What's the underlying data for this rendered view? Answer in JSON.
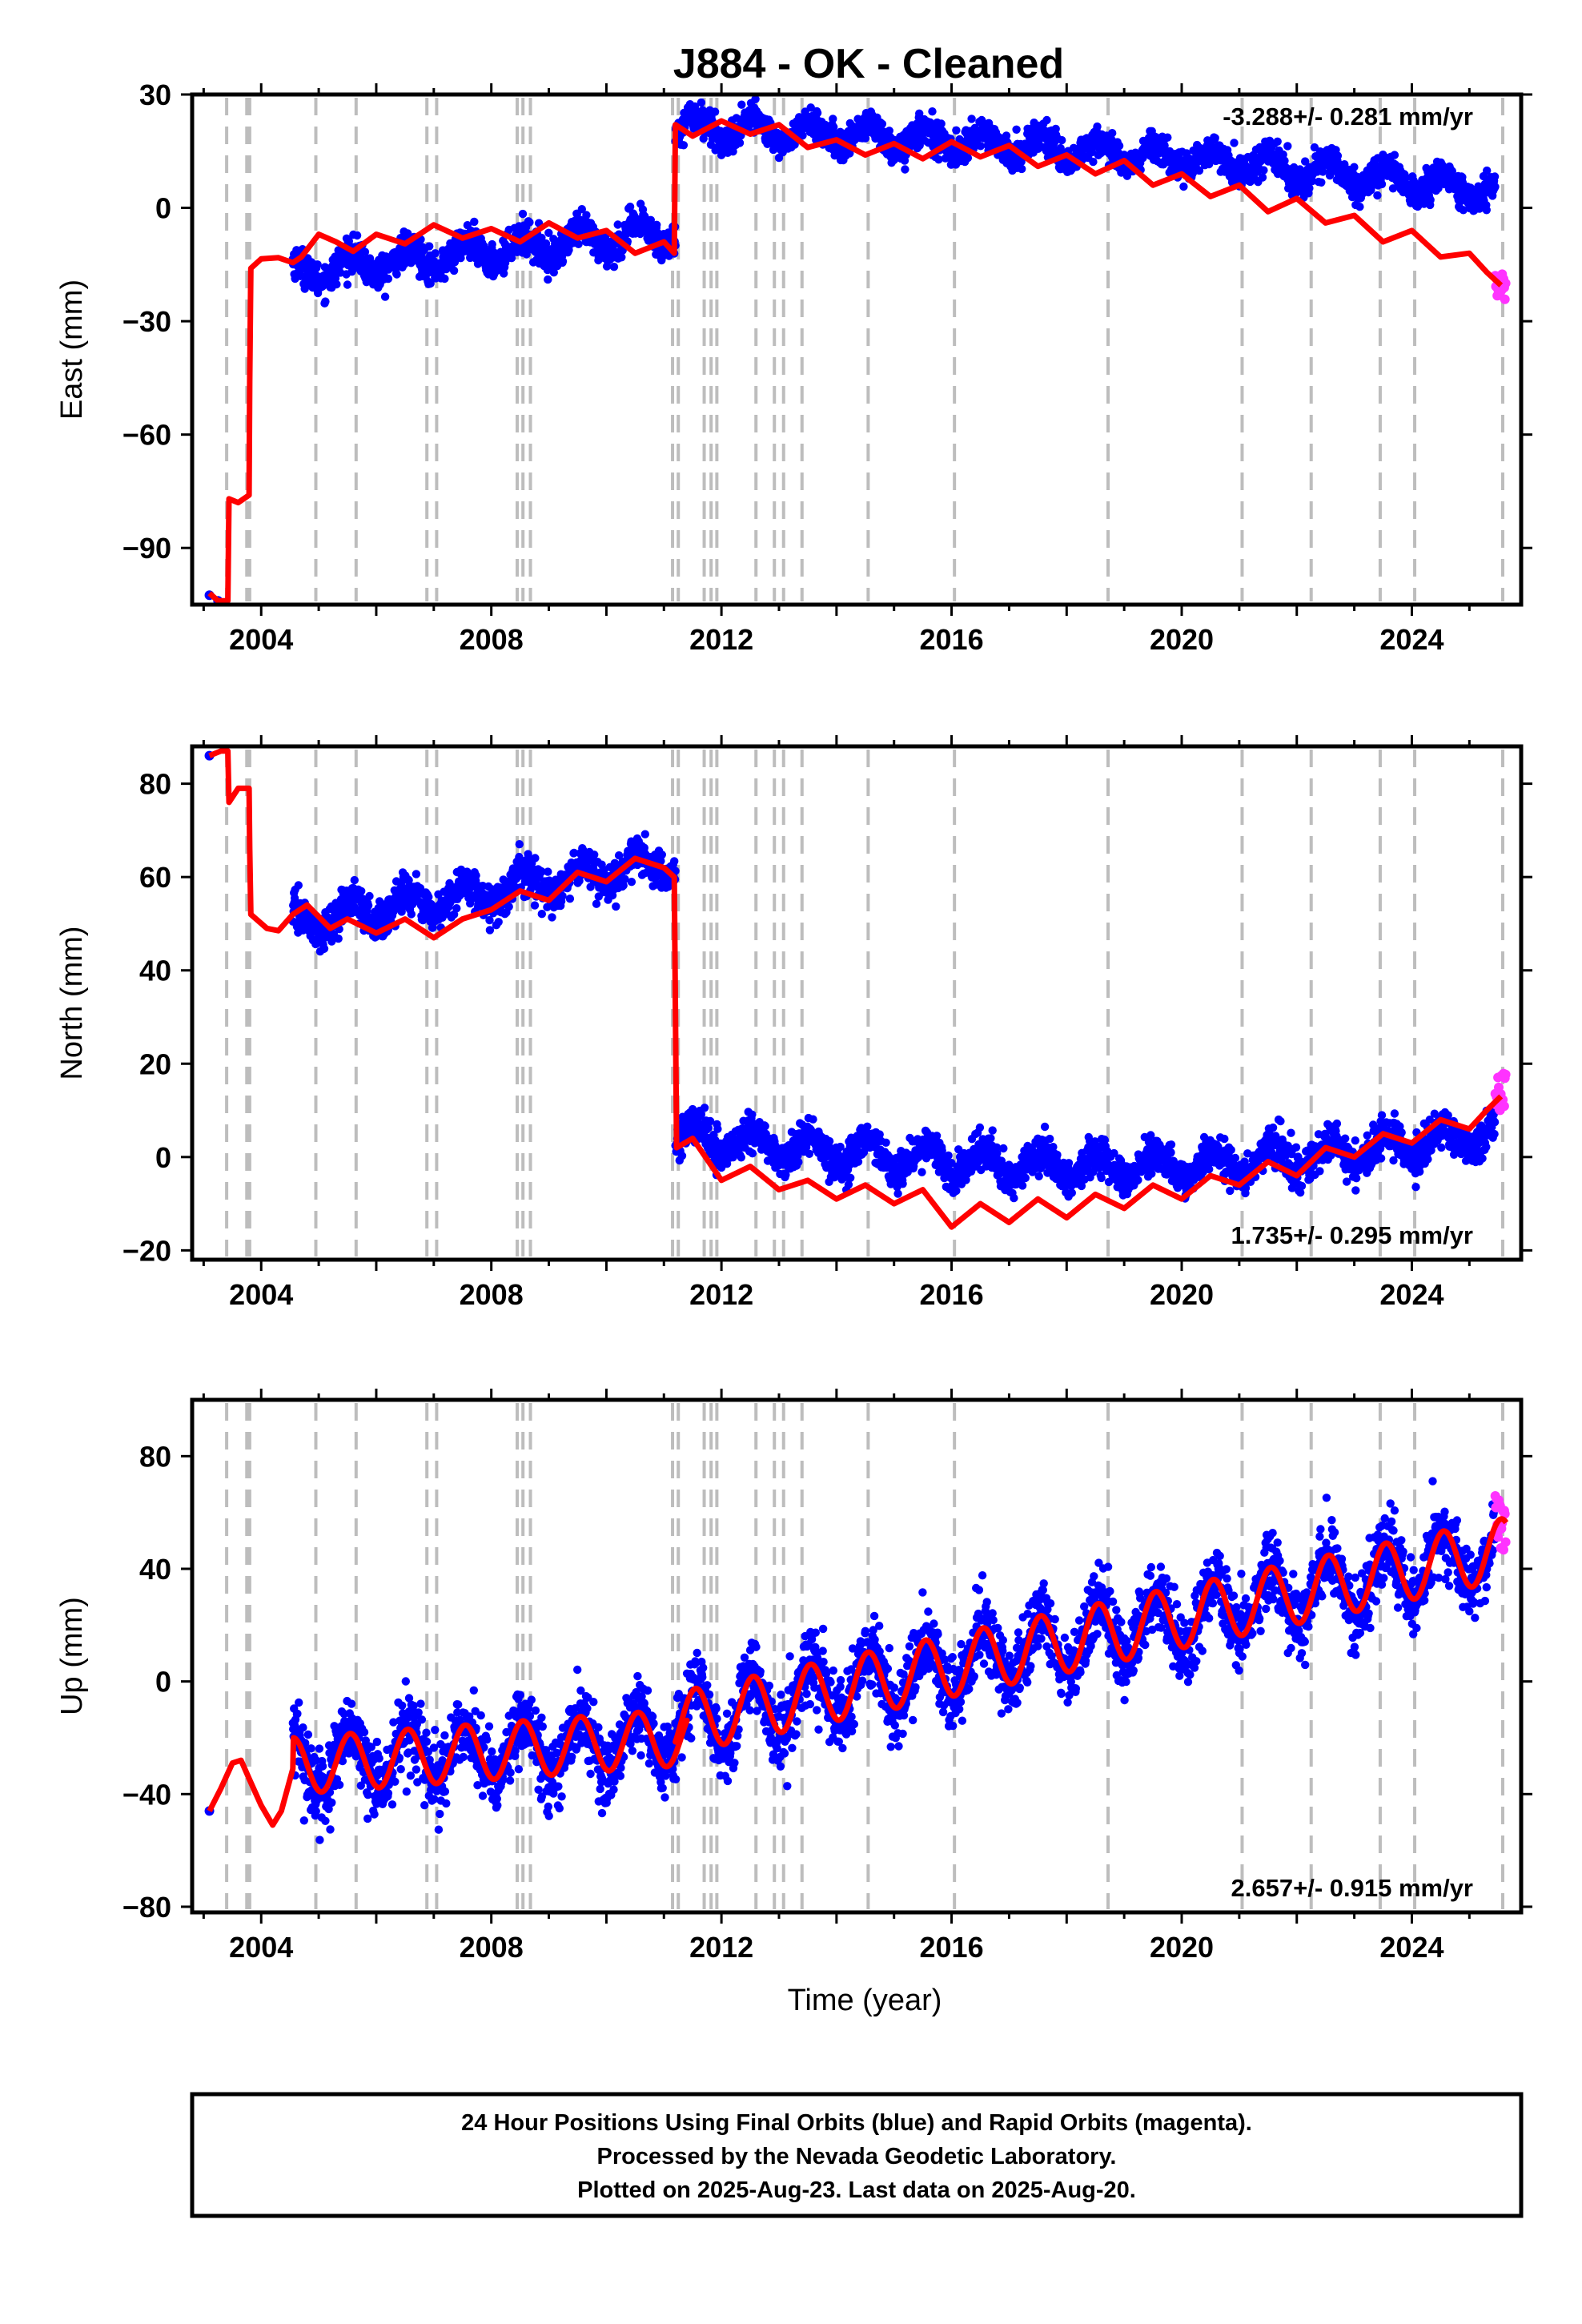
{
  "title": "J884  - OK - Cleaned",
  "colors": {
    "final_orbits": "#0000ff",
    "rapid_orbits": "#ff33ff",
    "model": "#ff0000",
    "event_lines": "#bdbdbd",
    "frame": "#000000"
  },
  "chart_data": [
    {
      "type": "scatter",
      "component": "east",
      "ylabel": "East (mm)",
      "xlabel": "",
      "xlim": [
        2002.8,
        2025.9
      ],
      "ylim": [
        -105,
        30
      ],
      "yticks": [
        -90,
        -60,
        -30,
        0,
        30
      ],
      "xticks": [
        2004,
        2008,
        2012,
        2016,
        2020,
        2024
      ],
      "rate_text": "-3.288+/- 0.281 mm/yr",
      "rate_position": "top-right",
      "grid": false,
      "series": [
        {
          "name": "Final Orbits",
          "color": "#0000ff",
          "segments": [
            {
              "x0": 2004.55,
              "x1": 2011.2,
              "y0": -17.0,
              "rate": 1.6,
              "amp": 3.0,
              "noise": 2.2
            },
            {
              "x0": 2011.2,
              "x1": 2025.45,
              "y0": 22.0,
              "rate": -0.9,
              "amp": 3.0,
              "noise": 2.0,
              "curve": -0.055,
              "curve_t0": 2016.0
            }
          ],
          "early_points": [
            [
              2003.1,
              -102.5
            ],
            [
              2003.25,
              -104.0
            ]
          ]
        },
        {
          "name": "Rapid Orbits",
          "color": "#ff33ff",
          "x0": 2025.45,
          "x1": 2025.63,
          "y0": -21.0,
          "spread": 3.5
        },
        {
          "name": "Model",
          "color": "#ff0000",
          "points": [
            [
              2003.1,
              -102
            ],
            [
              2003.25,
              -104
            ],
            [
              2003.42,
              -104
            ],
            [
              2003.44,
              -77
            ],
            [
              2003.6,
              -78
            ],
            [
              2003.79,
              -76
            ],
            [
              2003.8,
              -46
            ],
            [
              2003.82,
              -16
            ],
            [
              2004.0,
              -13.5
            ],
            [
              2004.3,
              -13.2
            ],
            [
              2004.55,
              -14.5
            ],
            [
              2004.7,
              -13.0
            ],
            [
              2005.0,
              -7.0
            ],
            [
              2005.3,
              -9.0
            ],
            [
              2005.6,
              -11.5
            ],
            [
              2006.0,
              -7.0
            ],
            [
              2006.5,
              -9.5
            ],
            [
              2007.0,
              -4.5
            ],
            [
              2007.5,
              -8.0
            ],
            [
              2008.0,
              -5.5
            ],
            [
              2008.5,
              -9.0
            ],
            [
              2009.0,
              -4.0
            ],
            [
              2009.5,
              -8.0
            ],
            [
              2010.0,
              -6.0
            ],
            [
              2010.5,
              -12.0
            ],
            [
              2011.0,
              -9.0
            ],
            [
              2011.18,
              -12.0
            ],
            [
              2011.2,
              22.0
            ],
            [
              2011.5,
              19.0
            ],
            [
              2012.0,
              23.0
            ],
            [
              2012.5,
              19.5
            ],
            [
              2013.0,
              22.0
            ],
            [
              2013.5,
              16.0
            ],
            [
              2014.0,
              18.0
            ],
            [
              2014.5,
              14.0
            ],
            [
              2015.0,
              17.0
            ],
            [
              2015.5,
              13.0
            ],
            [
              2016.0,
              17.5
            ],
            [
              2016.5,
              13.5
            ],
            [
              2017.0,
              16.5
            ],
            [
              2017.5,
              11.0
            ],
            [
              2018.0,
              14.0
            ],
            [
              2018.5,
              9.0
            ],
            [
              2019.0,
              12.5
            ],
            [
              2019.5,
              6.0
            ],
            [
              2020.0,
              9.0
            ],
            [
              2020.5,
              3.0
            ],
            [
              2021.0,
              6.0
            ],
            [
              2021.5,
              -1.0
            ],
            [
              2022.0,
              2.5
            ],
            [
              2022.5,
              -4.0
            ],
            [
              2023.0,
              -2.0
            ],
            [
              2023.5,
              -9.0
            ],
            [
              2024.0,
              -6.0
            ],
            [
              2024.5,
              -13.0
            ],
            [
              2025.0,
              -12.0
            ],
            [
              2025.3,
              -17.0
            ],
            [
              2025.55,
              -20.5
            ]
          ]
        }
      ]
    },
    {
      "type": "scatter",
      "component": "north",
      "ylabel": "North (mm)",
      "xlabel": "",
      "xlim": [
        2002.8,
        2025.9
      ],
      "ylim": [
        -22,
        88
      ],
      "yticks": [
        -20,
        0,
        20,
        40,
        60,
        80
      ],
      "xticks": [
        2004,
        2008,
        2012,
        2016,
        2020,
        2024
      ],
      "rate_text": "1.735+/- 0.295 mm/yr",
      "rate_position": "bottom-right",
      "grid": false,
      "series": [
        {
          "name": "Final Orbits",
          "color": "#0000ff",
          "segments": [
            {
              "x0": 2004.55,
              "x1": 2011.2,
              "y0": 50.0,
              "rate": 2.0,
              "amp": 2.8,
              "noise": 2.0
            },
            {
              "x0": 2011.2,
              "x1": 2025.45,
              "y0": 3.0,
              "rate": -0.8,
              "amp": 3.0,
              "noise": 2.0,
              "curve": 0.18,
              "curve_t0": 2016.5
            }
          ],
          "early_points": [
            [
              2003.1,
              86.0
            ]
          ]
        },
        {
          "name": "Rapid Orbits",
          "color": "#ff33ff",
          "x0": 2025.45,
          "x1": 2025.63,
          "y0": 14.0,
          "spread": 4.0
        },
        {
          "name": "Model",
          "color": "#ff0000",
          "points": [
            [
              2003.1,
              86
            ],
            [
              2003.3,
              87
            ],
            [
              2003.42,
              87
            ],
            [
              2003.44,
              76
            ],
            [
              2003.6,
              79
            ],
            [
              2003.79,
              79
            ],
            [
              2003.8,
              66
            ],
            [
              2003.82,
              52
            ],
            [
              2004.1,
              49
            ],
            [
              2004.3,
              48.5
            ],
            [
              2004.55,
              52
            ],
            [
              2004.8,
              54
            ],
            [
              2005.2,
              49
            ],
            [
              2005.5,
              51
            ],
            [
              2006.0,
              48
            ],
            [
              2006.5,
              51
            ],
            [
              2007.0,
              47
            ],
            [
              2007.5,
              51
            ],
            [
              2008.0,
              53
            ],
            [
              2008.5,
              57
            ],
            [
              2009.0,
              55
            ],
            [
              2009.5,
              61
            ],
            [
              2010.0,
              59
            ],
            [
              2010.5,
              64
            ],
            [
              2011.0,
              62
            ],
            [
              2011.18,
              60
            ],
            [
              2011.22,
              2
            ],
            [
              2011.5,
              4
            ],
            [
              2012.0,
              -5
            ],
            [
              2012.5,
              -2
            ],
            [
              2013.0,
              -7
            ],
            [
              2013.5,
              -5
            ],
            [
              2014.0,
              -9
            ],
            [
              2014.5,
              -6
            ],
            [
              2015.0,
              -10
            ],
            [
              2015.5,
              -7
            ],
            [
              2016.0,
              -15
            ],
            [
              2016.5,
              -10
            ],
            [
              2017.0,
              -14
            ],
            [
              2017.5,
              -9
            ],
            [
              2018.0,
              -13
            ],
            [
              2018.5,
              -8
            ],
            [
              2019.0,
              -11
            ],
            [
              2019.5,
              -6
            ],
            [
              2020.0,
              -9
            ],
            [
              2020.5,
              -4
            ],
            [
              2021.0,
              -6
            ],
            [
              2021.5,
              -1
            ],
            [
              2022.0,
              -4
            ],
            [
              2022.5,
              2
            ],
            [
              2023.0,
              0
            ],
            [
              2023.5,
              5
            ],
            [
              2024.0,
              3
            ],
            [
              2024.5,
              8
            ],
            [
              2025.0,
              6
            ],
            [
              2025.3,
              10
            ],
            [
              2025.55,
              13
            ]
          ]
        }
      ]
    },
    {
      "type": "scatter",
      "component": "up",
      "ylabel": "Up (mm)",
      "xlabel": "Time (year)",
      "xlim": [
        2002.8,
        2025.9
      ],
      "ylim": [
        -82,
        100
      ],
      "yticks": [
        -80,
        -40,
        0,
        40,
        80
      ],
      "xticks": [
        2004,
        2008,
        2012,
        2016,
        2020,
        2024
      ],
      "rate_text": "2.657+/- 0.915 mm/yr",
      "rate_position": "bottom-right",
      "grid": false,
      "series": [
        {
          "name": "Final Orbits",
          "color": "#0000ff",
          "segments": [
            {
              "x0": 2004.55,
              "x1": 2011.2,
              "y0": -30.0,
              "rate": 1.5,
              "amp": 10.0,
              "noise": 6.5
            },
            {
              "x0": 2011.2,
              "x1": 2025.45,
              "y0": -15.0,
              "rate": 4.3,
              "amp": 11.0,
              "noise": 6.5
            }
          ],
          "early_points": [
            [
              2003.1,
              -46.0
            ]
          ]
        },
        {
          "name": "Rapid Orbits",
          "color": "#ff33ff",
          "x0": 2025.45,
          "x1": 2025.63,
          "y0": 55.0,
          "spread": 12.0
        },
        {
          "name": "Model",
          "color": "#ff0000"
        }
      ]
    }
  ],
  "event_lines": [
    2003.4,
    2003.75,
    2003.8,
    2004.95,
    2005.65,
    2006.88,
    2007.05,
    2008.45,
    2008.55,
    2008.68,
    2011.15,
    2011.25,
    2011.7,
    2011.82,
    2011.92,
    2012.6,
    2012.92,
    2013.08,
    2013.4,
    2014.55,
    2016.05,
    2018.72,
    2021.05,
    2022.25,
    2023.45,
    2024.05,
    2025.58
  ],
  "footer": {
    "line1": "24 Hour Positions Using Final Orbits (blue) and Rapid Orbits (magenta).",
    "line2": "Processed by the Nevada Geodetic Laboratory.",
    "line3": "Plotted on 2025-Aug-23. Last data on 2025-Aug-20."
  }
}
